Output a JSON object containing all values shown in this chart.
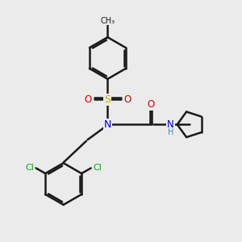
{
  "bg_color": "#ebebeb",
  "bond_color": "#1a1a1a",
  "line_width": 1.8,
  "atom_colors": {
    "N": "#0000cc",
    "O": "#cc0000",
    "S": "#ccaa00",
    "Cl": "#00aa00",
    "H": "#4488aa",
    "C": "#1a1a1a"
  },
  "fig_size": [
    3.0,
    3.0
  ],
  "dpi": 100
}
